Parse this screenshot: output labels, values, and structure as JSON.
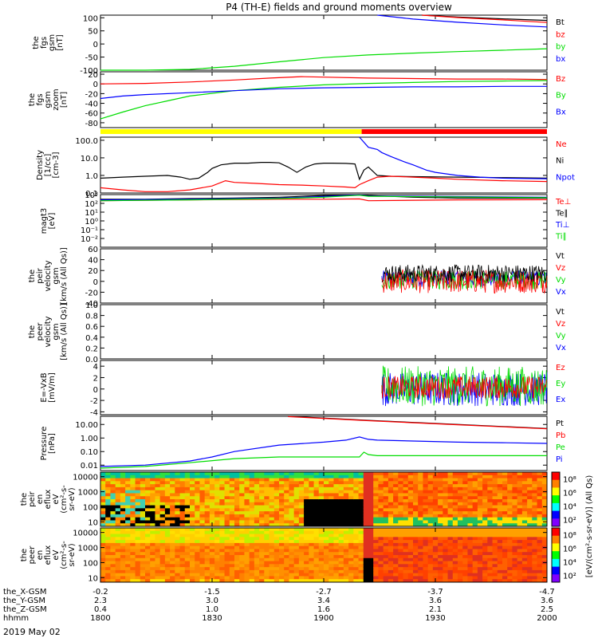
{
  "title": "P4 (TH-E) fields and ground moments overview",
  "date_label": "2019 May 02",
  "colors": {
    "black": "#000000",
    "red": "#ff0000",
    "green": "#00dd00",
    "blue": "#0000ff",
    "yellow": "#ffff00"
  },
  "chart_data": [
    {
      "id": "fgs_gsm",
      "type": "line",
      "ylabel": [
        "the",
        "fgs",
        "gsm",
        "[nT]"
      ],
      "ylim": [
        -100,
        110
      ],
      "yticks": [
        "100",
        "50",
        "0",
        "-50",
        "-100"
      ],
      "ytick_values": [
        100,
        50,
        0,
        -50,
        -100
      ],
      "legend": [
        {
          "label": "Bt",
          "color": "black"
        },
        {
          "label": "bz",
          "color": "red"
        },
        {
          "label": "by",
          "color": "green"
        },
        {
          "label": "bx",
          "color": "blue"
        }
      ],
      "series": [
        {
          "color": "green",
          "x": [
            0,
            0.1,
            0.2,
            0.3,
            0.4,
            0.5,
            0.6,
            0.7,
            0.8,
            0.9,
            1
          ],
          "y": [
            -110,
            -105,
            -97,
            -85,
            -68,
            -52,
            -42,
            -35,
            -29,
            -24,
            -18
          ]
        },
        {
          "color": "black",
          "x": [
            0.72,
            0.8,
            0.9,
            1
          ],
          "y": [
            110,
            103,
            96,
            90
          ]
        },
        {
          "color": "red",
          "x": [
            0.72,
            0.8,
            0.9,
            1
          ],
          "y": [
            110,
            101,
            92,
            82
          ]
        },
        {
          "color": "blue",
          "x": [
            0.62,
            0.7,
            0.8,
            0.9,
            1
          ],
          "y": [
            110,
            95,
            83,
            73,
            65
          ]
        }
      ]
    },
    {
      "id": "fgs_gse_zoom",
      "type": "line",
      "ylabel": [
        "the",
        "fgs",
        "gsm",
        "zoom",
        "[nT]"
      ],
      "ylim": [
        -90,
        25
      ],
      "yticks": [
        "20",
        "0",
        "-20",
        "-40",
        "-60",
        "-80"
      ],
      "ytick_values": [
        20,
        0,
        -20,
        -40,
        -60,
        -80
      ],
      "legend": [
        {
          "label": "Bz",
          "color": "red"
        },
        {
          "label": "By",
          "color": "green"
        },
        {
          "label": "Bx",
          "color": "blue"
        }
      ],
      "series": [
        {
          "color": "red",
          "x": [
            0,
            0.1,
            0.2,
            0.3,
            0.38,
            0.45,
            0.5,
            0.6,
            0.7,
            0.8,
            0.9,
            1
          ],
          "y": [
            0,
            1,
            4,
            8,
            12,
            15,
            14,
            12,
            11,
            10,
            10,
            9
          ]
        },
        {
          "color": "green",
          "x": [
            0,
            0.05,
            0.1,
            0.15,
            0.2,
            0.3,
            0.4,
            0.5,
            0.6,
            0.7,
            0.8,
            0.9,
            1
          ],
          "y": [
            -72,
            -58,
            -45,
            -35,
            -25,
            -14,
            -7,
            -2,
            1,
            3,
            5,
            6,
            7
          ]
        },
        {
          "color": "blue",
          "x": [
            0,
            0.05,
            0.1,
            0.2,
            0.3,
            0.4,
            0.5,
            0.6,
            0.7,
            0.8,
            0.9,
            1
          ],
          "y": [
            -30,
            -25,
            -22,
            -18,
            -14,
            -10,
            -8,
            -7,
            -6,
            -6,
            -5,
            -5
          ]
        }
      ]
    },
    {
      "id": "density",
      "type": "line",
      "ylabel": [
        "Density",
        "[1/cc]",
        "[cm-3]"
      ],
      "yscale": "log",
      "ylim": [
        0.1,
        150
      ],
      "yticks": [
        "100.0",
        "10.0",
        "1.0",
        "0.1"
      ],
      "ytick_values": [
        100,
        10,
        1,
        0.1
      ],
      "legend": [
        {
          "label": "Ne",
          "color": "red"
        },
        {
          "label": "Ni",
          "color": "black"
        },
        {
          "label": "Npot",
          "color": "blue"
        }
      ],
      "series": [
        {
          "color": "black",
          "x": [
            0,
            0.05,
            0.1,
            0.15,
            0.18,
            0.2,
            0.22,
            0.24,
            0.25,
            0.27,
            0.3,
            0.33,
            0.36,
            0.38,
            0.4,
            0.42,
            0.44,
            0.46,
            0.48,
            0.5,
            0.52,
            0.55,
            0.57,
            0.58,
            0.59,
            0.6,
            0.62,
            0.65,
            0.7,
            0.8,
            0.9,
            1
          ],
          "y": [
            0.7,
            0.8,
            0.9,
            1.0,
            0.8,
            0.6,
            0.7,
            1.5,
            2.5,
            4,
            5,
            5,
            5.5,
            5.5,
            5.2,
            3,
            1.5,
            3,
            4.5,
            5,
            5,
            4.8,
            4.5,
            0.6,
            2,
            3,
            1.0,
            0.9,
            0.85,
            0.8,
            0.75,
            0.7
          ]
        },
        {
          "color": "red",
          "x": [
            0,
            0.05,
            0.1,
            0.15,
            0.2,
            0.25,
            0.28,
            0.3,
            0.35,
            0.4,
            0.45,
            0.5,
            0.55,
            0.57,
            0.58,
            0.6,
            0.62,
            0.65,
            0.7,
            0.75,
            0.8,
            0.9,
            1
          ],
          "y": [
            0.2,
            0.15,
            0.12,
            0.12,
            0.15,
            0.25,
            0.5,
            0.4,
            0.35,
            0.3,
            0.28,
            0.25,
            0.22,
            0.2,
            0.3,
            0.5,
            0.8,
            0.9,
            0.8,
            0.7,
            0.6,
            0.5,
            0.45
          ]
        },
        {
          "color": "blue",
          "x": [
            0.58,
            0.6,
            0.62,
            0.63,
            0.65,
            0.68,
            0.7,
            0.73,
            0.75,
            0.8,
            0.85,
            0.9,
            1
          ],
          "y": [
            150,
            40,
            30,
            20,
            12,
            6,
            4,
            2,
            1.5,
            1,
            0.8,
            0.7,
            0.65
          ]
        }
      ]
    },
    {
      "id": "temperature",
      "type": "line",
      "ylabel": [
        "magt3",
        "[eV]"
      ],
      "yscale": "log",
      "ylim": [
        0.001,
        1000
      ],
      "yticks": [
        "10³",
        "10²",
        "10¹",
        "10⁰",
        "10⁻¹",
        "10⁻²"
      ],
      "ytick_values": [
        1000,
        100,
        10,
        1,
        0.1,
        0.01
      ],
      "legend": [
        {
          "label": "Te⊥",
          "color": "red"
        },
        {
          "label": "Te∥",
          "color": "black"
        },
        {
          "label": "Ti⊥",
          "color": "blue"
        },
        {
          "label": "Ti∥",
          "color": "green"
        }
      ],
      "series": [
        {
          "color": "black",
          "x": [
            0,
            0.1,
            0.2,
            0.3,
            0.4,
            0.5,
            0.55,
            0.58,
            0.6,
            0.7,
            0.8,
            0.9,
            1
          ],
          "y": [
            300,
            300,
            350,
            400,
            500,
            800,
            900,
            1000,
            800,
            500,
            400,
            400,
            400
          ]
        },
        {
          "color": "red",
          "x": [
            0,
            0.2,
            0.4,
            0.5,
            0.58,
            0.6,
            0.8,
            1
          ],
          "y": [
            200,
            250,
            300,
            300,
            320,
            200,
            250,
            260
          ]
        },
        {
          "color": "blue",
          "x": [
            0,
            0.2,
            0.4,
            0.5,
            0.55,
            0.58,
            0.6,
            1
          ],
          "y": [
            250,
            300,
            400,
            600,
            800,
            900,
            700,
            500
          ]
        },
        {
          "color": "green",
          "x": [
            0,
            0.2,
            0.4,
            0.5,
            0.55,
            0.58,
            0.6,
            1
          ],
          "y": [
            200,
            250,
            350,
            500,
            700,
            850,
            650,
            450
          ]
        }
      ]
    },
    {
      "id": "peir_velocity",
      "type": "line",
      "ylabel": [
        "the",
        "peir",
        "velocity",
        "gsm",
        "[km/s (All Qs)]"
      ],
      "ylim": [
        -40,
        60
      ],
      "yticks": [
        "60",
        "40",
        "20",
        "0",
        "-20",
        "-40"
      ],
      "ytick_values": [
        60,
        40,
        20,
        0,
        -20,
        -40
      ],
      "legend": [
        {
          "label": "Vt",
          "color": "black"
        },
        {
          "label": "Vz",
          "color": "red"
        },
        {
          "label": "Vy",
          "color": "green"
        },
        {
          "label": "Vx",
          "color": "blue"
        }
      ],
      "noise": {
        "x_start": 0.63,
        "x_end": 1.0,
        "bands": [
          {
            "color": "blue",
            "center": 5,
            "amp": 15
          },
          {
            "color": "green",
            "center": 3,
            "amp": 18
          },
          {
            "color": "red",
            "center": 0,
            "amp": 22
          },
          {
            "color": "black",
            "center": 15,
            "amp": 16
          }
        ]
      }
    },
    {
      "id": "peer_velocity",
      "type": "line",
      "ylabel": [
        "the",
        "peer",
        "velocity",
        "gsm",
        "[km/s (All Qs)]"
      ],
      "ylim": [
        0,
        1
      ],
      "yticks": [
        "1.0",
        "0.8",
        "0.6",
        "0.4",
        "0.2",
        "0.0"
      ],
      "ytick_values": [
        1,
        0.8,
        0.6,
        0.4,
        0.2,
        0
      ],
      "legend": [
        {
          "label": "Vt",
          "color": "black"
        },
        {
          "label": "Vz",
          "color": "red"
        },
        {
          "label": "Vy",
          "color": "green"
        },
        {
          "label": "Vx",
          "color": "blue"
        }
      ],
      "series": []
    },
    {
      "id": "efield",
      "type": "line",
      "ylabel": [
        "E=-VxB",
        "[mV/m]"
      ],
      "ylim": [
        -4.5,
        5
      ],
      "yticks": [
        "4",
        "2",
        "0",
        "-2",
        "-4"
      ],
      "ytick_values": [
        4,
        2,
        0,
        -2,
        -4
      ],
      "legend": [
        {
          "label": "Ez",
          "color": "red"
        },
        {
          "label": "Ey",
          "color": "green"
        },
        {
          "label": "Ex",
          "color": "blue"
        }
      ],
      "noise": {
        "x_start": 0.63,
        "x_end": 1.0,
        "bands": [
          {
            "color": "blue",
            "center": 0,
            "amp": 3
          },
          {
            "color": "green",
            "center": 0.5,
            "amp": 3.5
          },
          {
            "color": "red",
            "center": 0.3,
            "amp": 2
          }
        ]
      }
    },
    {
      "id": "pressure",
      "type": "line",
      "ylabel": [
        "Pressure",
        "[nPa]"
      ],
      "yscale": "log",
      "ylim": [
        0.004,
        40
      ],
      "yticks": [
        "10.00",
        "1.00",
        "0.10",
        "0.01"
      ],
      "ytick_values": [
        10,
        1,
        0.1,
        0.01
      ],
      "legend": [
        {
          "label": "Pt",
          "color": "black"
        },
        {
          "label": "Pb",
          "color": "red"
        },
        {
          "label": "Pe",
          "color": "green"
        },
        {
          "label": "Pi",
          "color": "blue"
        }
      ],
      "series": [
        {
          "color": "black",
          "x": [
            0.42,
            0.6,
            0.8,
            1
          ],
          "y": [
            40,
            20,
            10,
            5
          ]
        },
        {
          "color": "red",
          "x": [
            0.42,
            0.6,
            0.8,
            1
          ],
          "y": [
            38,
            19,
            9.5,
            4.8
          ]
        },
        {
          "color": "blue",
          "x": [
            0,
            0.1,
            0.2,
            0.25,
            0.3,
            0.4,
            0.5,
            0.55,
            0.58,
            0.6,
            0.62,
            0.7,
            0.8,
            0.9,
            1
          ],
          "y": [
            0.008,
            0.01,
            0.02,
            0.04,
            0.1,
            0.3,
            0.5,
            0.7,
            1.2,
            0.8,
            0.7,
            0.6,
            0.5,
            0.45,
            0.4
          ]
        },
        {
          "color": "green",
          "x": [
            0,
            0.1,
            0.2,
            0.3,
            0.4,
            0.5,
            0.55,
            0.58,
            0.59,
            0.6,
            0.62,
            0.7,
            0.8,
            0.9,
            1
          ],
          "y": [
            0.006,
            0.008,
            0.015,
            0.03,
            0.04,
            0.04,
            0.04,
            0.04,
            0.09,
            0.06,
            0.05,
            0.05,
            0.05,
            0.05,
            0.05
          ]
        }
      ]
    },
    {
      "id": "peir_eflux",
      "type": "heatmap",
      "ylabel": [
        "the",
        "peir",
        "en",
        "eflux",
        "eV",
        "(cm²-s-",
        "sr-eV)"
      ],
      "yscale": "log",
      "ylim": [
        5,
        20000
      ],
      "yticks": [
        "10000",
        "1000",
        "100",
        "10"
      ],
      "ytick_values": [
        10000,
        1000,
        100,
        10
      ],
      "colorbar_ticks": [
        "10⁸",
        "10⁶",
        "10⁴",
        "10²"
      ]
    },
    {
      "id": "peer_eflux",
      "type": "heatmap",
      "ylabel": [
        "the",
        "peer",
        "en",
        "eflux",
        "eV",
        "(cm²-s-",
        "sr-eV)"
      ],
      "yscale": "log",
      "ylim": [
        5,
        20000
      ],
      "yticks": [
        "10000",
        "1000",
        "100",
        "10"
      ],
      "ytick_values": [
        10000,
        1000,
        100,
        10
      ],
      "colorbar_ticks": [
        "10⁸",
        "10⁶",
        "10⁴",
        "10²"
      ]
    }
  ],
  "colorbar_label": "[eV/(cm²-s-sr-eV)] (All Qs)",
  "footer": {
    "row_labels": [
      "the_X-GSM",
      "the_Y-GSM",
      "the_Z-GSM",
      "hhmm"
    ],
    "columns": [
      [
        "-0.2",
        "2.3",
        "0.4",
        "1800"
      ],
      [
        "-1.5",
        "3.0",
        "1.0",
        "1830"
      ],
      [
        "-2.7",
        "3.4",
        "1.6",
        "1900"
      ],
      [
        "-3.7",
        "3.6",
        "2.1",
        "1930"
      ],
      [
        "-4.7",
        "3.6",
        "2.5",
        "2000"
      ]
    ]
  }
}
